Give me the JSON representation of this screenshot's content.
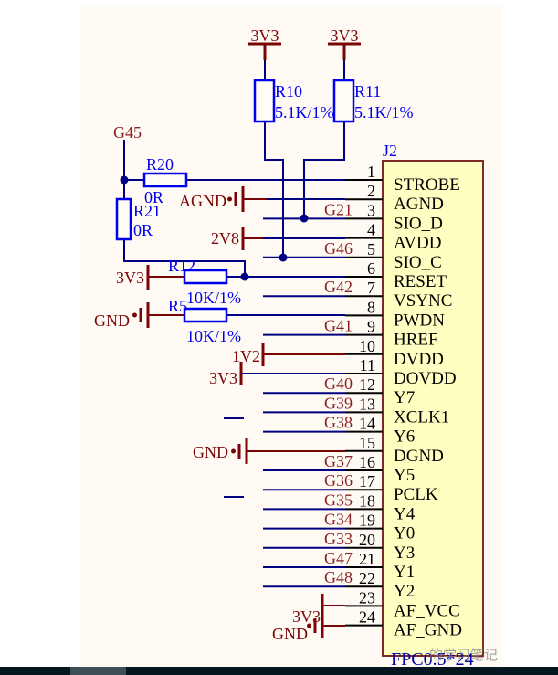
{
  "colors": {
    "wire_blue": "#000082",
    "component_blue": "#0000EE",
    "power_dark_red": "#7A0505",
    "net_label_red": "#8B2020",
    "connector_fill": "#FFFFC2",
    "connector_border": "#7E2A2A",
    "canvas_cream": "#FFFBF4",
    "scrollbar_track": "#05161F",
    "scrollbar_thumb": "#3D4E55"
  },
  "rails_top": [
    {
      "label": "3V3"
    },
    {
      "label": "3V3"
    }
  ],
  "g45_label": "G45",
  "resistors": [
    {
      "ref": "R10",
      "value": "5.1K/1%"
    },
    {
      "ref": "R11",
      "value": "5.1K/1%"
    },
    {
      "ref": "R20",
      "value": "0R"
    },
    {
      "ref": "R21",
      "value": "0R"
    },
    {
      "ref": "R12",
      "value": "10K/1%"
    },
    {
      "ref": "R5",
      "value": "10K/1%"
    }
  ],
  "power_labels": {
    "agnd": "AGND",
    "avdd_rail": "2V8",
    "r12_rail": "3V3",
    "r5_gnd": "GND",
    "dvdd_rail": "1V2",
    "dovdd_rail": "3V3",
    "dgnd": "GND",
    "af_vcc_rail": "3V3",
    "af_gnd": "GND"
  },
  "connector": {
    "designator": "J2",
    "part_label": "FPC0.5*24",
    "pins": [
      {
        "num": "1",
        "name": "STROBE",
        "net": ""
      },
      {
        "num": "2",
        "name": "AGND",
        "net": ""
      },
      {
        "num": "3",
        "name": "SIO_D",
        "net": "G21"
      },
      {
        "num": "4",
        "name": "AVDD",
        "net": ""
      },
      {
        "num": "5",
        "name": "SIO_C",
        "net": "G46"
      },
      {
        "num": "6",
        "name": "RESET",
        "net": ""
      },
      {
        "num": "7",
        "name": "VSYNC",
        "net": "G42"
      },
      {
        "num": "8",
        "name": "PWDN",
        "net": ""
      },
      {
        "num": "9",
        "name": "HREF",
        "net": "G41"
      },
      {
        "num": "10",
        "name": "DVDD",
        "net": ""
      },
      {
        "num": "11",
        "name": "DOVDD",
        "net": ""
      },
      {
        "num": "12",
        "name": "Y7",
        "net": "G40"
      },
      {
        "num": "13",
        "name": "XCLK1",
        "net": "G39"
      },
      {
        "num": "14",
        "name": "Y6",
        "net": "G38"
      },
      {
        "num": "15",
        "name": "DGND",
        "net": ""
      },
      {
        "num": "16",
        "name": "Y5",
        "net": "G37"
      },
      {
        "num": "17",
        "name": "PCLK",
        "net": "G36"
      },
      {
        "num": "18",
        "name": "Y4",
        "net": "G35"
      },
      {
        "num": "19",
        "name": "Y0",
        "net": "G34"
      },
      {
        "num": "20",
        "name": "Y3",
        "net": "G33"
      },
      {
        "num": "21",
        "name": "Y1",
        "net": "G47"
      },
      {
        "num": "22",
        "name": "Y2",
        "net": "G48"
      },
      {
        "num": "23",
        "name": "AF_VCC",
        "net": ""
      },
      {
        "num": "24",
        "name": "AF_GND",
        "net": ""
      }
    ]
  },
  "watermark": "的学习笔记"
}
